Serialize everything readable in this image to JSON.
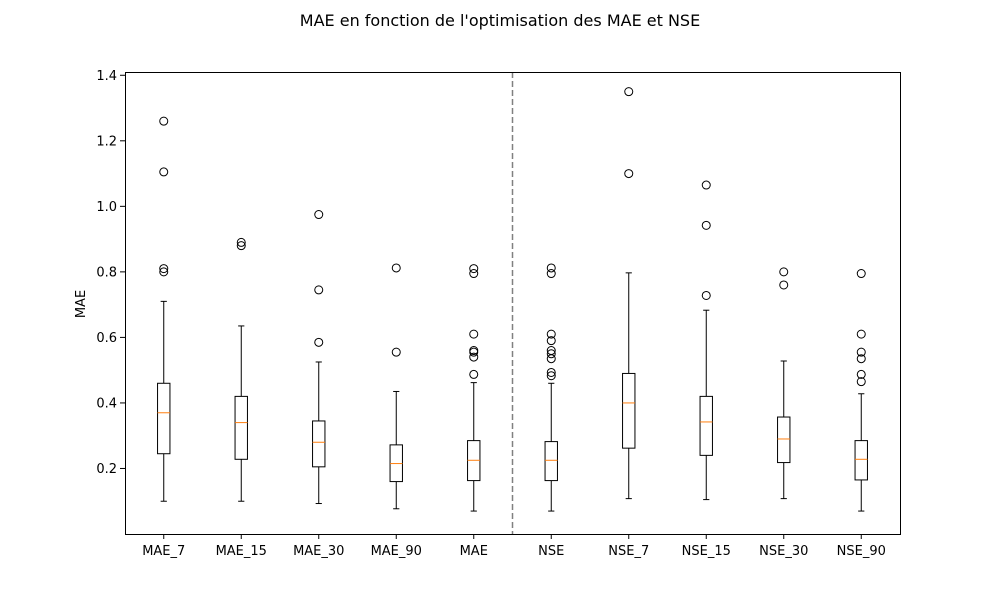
{
  "chart_data": {
    "type": "box",
    "title": "MAE en fonction de l'optimisation des MAE et NSE",
    "xlabel": "",
    "ylabel": "MAE",
    "ylim": [
      0.0,
      1.41
    ],
    "yticks": [
      0.2,
      0.4,
      0.6,
      0.8,
      1.0,
      1.2,
      1.4
    ],
    "ytick_labels": [
      "0.2",
      "0.4",
      "0.6",
      "0.8",
      "1.0",
      "1.2",
      "1.4"
    ],
    "grid": false,
    "separator": {
      "between": [
        "MAE",
        "NSE"
      ],
      "style": "dashed",
      "color": "#808080"
    },
    "colors": {
      "box": "#000000",
      "median": "#ff7f0e",
      "flier": "#000000"
    },
    "categories": [
      "MAE_7",
      "MAE_15",
      "MAE_30",
      "MAE_90",
      "MAE",
      "NSE",
      "NSE_7",
      "NSE_15",
      "NSE_30",
      "NSE_90"
    ],
    "boxes": [
      {
        "name": "MAE_7",
        "whislo": 0.1,
        "q1": 0.245,
        "med": 0.37,
        "q3": 0.46,
        "whishi": 0.71,
        "fliers": [
          0.8,
          0.81,
          1.105,
          1.26
        ]
      },
      {
        "name": "MAE_15",
        "whislo": 0.1,
        "q1": 0.228,
        "med": 0.34,
        "q3": 0.42,
        "whishi": 0.635,
        "fliers": [
          0.88,
          0.89
        ]
      },
      {
        "name": "MAE_30",
        "whislo": 0.093,
        "q1": 0.205,
        "med": 0.28,
        "q3": 0.345,
        "whishi": 0.525,
        "fliers": [
          0.585,
          0.745,
          0.975
        ]
      },
      {
        "name": "MAE_90",
        "whislo": 0.077,
        "q1": 0.16,
        "med": 0.215,
        "q3": 0.272,
        "whishi": 0.435,
        "fliers": [
          0.555,
          0.812
        ]
      },
      {
        "name": "MAE",
        "whislo": 0.07,
        "q1": 0.163,
        "med": 0.225,
        "q3": 0.285,
        "whishi": 0.462,
        "fliers": [
          0.487,
          0.54,
          0.555,
          0.56,
          0.61,
          0.795,
          0.81
        ]
      },
      {
        "name": "NSE",
        "whislo": 0.07,
        "q1": 0.163,
        "med": 0.225,
        "q3": 0.282,
        "whishi": 0.46,
        "fliers": [
          0.483,
          0.493,
          0.535,
          0.55,
          0.56,
          0.59,
          0.61,
          0.795,
          0.812
        ]
      },
      {
        "name": "NSE_7",
        "whislo": 0.108,
        "q1": 0.262,
        "med": 0.4,
        "q3": 0.49,
        "whishi": 0.797,
        "fliers": [
          1.1,
          1.35
        ]
      },
      {
        "name": "NSE_15",
        "whislo": 0.105,
        "q1": 0.24,
        "med": 0.342,
        "q3": 0.42,
        "whishi": 0.683,
        "fliers": [
          0.728,
          0.942,
          1.065
        ]
      },
      {
        "name": "NSE_30",
        "whislo": 0.108,
        "q1": 0.218,
        "med": 0.29,
        "q3": 0.357,
        "whishi": 0.528,
        "fliers": [
          0.76,
          0.8
        ]
      },
      {
        "name": "NSE_90",
        "whislo": 0.07,
        "q1": 0.165,
        "med": 0.228,
        "q3": 0.285,
        "whishi": 0.428,
        "fliers": [
          0.465,
          0.487,
          0.535,
          0.555,
          0.61,
          0.795
        ]
      }
    ]
  }
}
